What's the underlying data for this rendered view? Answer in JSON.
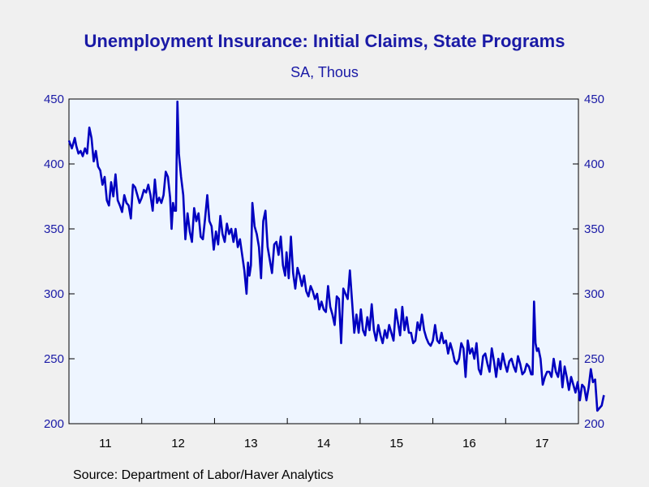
{
  "chart_data": {
    "type": "line",
    "title": "Unemployment Insurance: Initial Claims, State Programs",
    "subtitle": "SA, Thous",
    "source": "Source:  Department of Labor/Haver Analytics",
    "x_tick_labels": [
      "11",
      "12",
      "13",
      "14",
      "15",
      "16",
      "17"
    ],
    "x_range": [
      2011.0,
      2018.0
    ],
    "ylim": [
      200,
      450
    ],
    "y_ticks": [
      200,
      250,
      300,
      350,
      400,
      450
    ],
    "y_tick_labels": [
      "200",
      "250",
      "300",
      "350",
      "400",
      "450"
    ],
    "grid": false,
    "line_color": "#0000c0",
    "axis_label_color": "#1a1aa6",
    "plot_background": "#eef5ff",
    "series": [
      {
        "values": [
          [
            2011.0,
            418
          ],
          [
            2011.04,
            412
          ],
          [
            2011.08,
            420
          ],
          [
            2011.1,
            414
          ],
          [
            2011.13,
            408
          ],
          [
            2011.16,
            410
          ],
          [
            2011.19,
            406
          ],
          [
            2011.22,
            412
          ],
          [
            2011.25,
            408
          ],
          [
            2011.28,
            428
          ],
          [
            2011.31,
            420
          ],
          [
            2011.34,
            402
          ],
          [
            2011.37,
            410
          ],
          [
            2011.4,
            398
          ],
          [
            2011.43,
            395
          ],
          [
            2011.46,
            384
          ],
          [
            2011.49,
            390
          ],
          [
            2011.52,
            372
          ],
          [
            2011.55,
            368
          ],
          [
            2011.58,
            386
          ],
          [
            2011.61,
            375
          ],
          [
            2011.64,
            392
          ],
          [
            2011.67,
            372
          ],
          [
            2011.7,
            368
          ],
          [
            2011.73,
            363
          ],
          [
            2011.76,
            376
          ],
          [
            2011.79,
            370
          ],
          [
            2011.82,
            368
          ],
          [
            2011.85,
            358
          ],
          [
            2011.88,
            384
          ],
          [
            2011.91,
            382
          ],
          [
            2011.94,
            376
          ],
          [
            2011.97,
            370
          ],
          [
            2012.0,
            374
          ],
          [
            2012.03,
            380
          ],
          [
            2012.06,
            378
          ],
          [
            2012.09,
            384
          ],
          [
            2012.12,
            376
          ],
          [
            2012.15,
            364
          ],
          [
            2012.18,
            388
          ],
          [
            2012.21,
            370
          ],
          [
            2012.24,
            374
          ],
          [
            2012.27,
            370
          ],
          [
            2012.3,
            376
          ],
          [
            2012.33,
            394
          ],
          [
            2012.36,
            390
          ],
          [
            2012.39,
            374
          ],
          [
            2012.41,
            350
          ],
          [
            2012.43,
            370
          ],
          [
            2012.45,
            364
          ],
          [
            2012.47,
            364
          ],
          [
            2012.49,
            448
          ],
          [
            2012.51,
            408
          ],
          [
            2012.54,
            390
          ],
          [
            2012.57,
            376
          ],
          [
            2012.6,
            342
          ],
          [
            2012.63,
            362
          ],
          [
            2012.66,
            348
          ],
          [
            2012.69,
            340
          ],
          [
            2012.72,
            366
          ],
          [
            2012.75,
            356
          ],
          [
            2012.78,
            362
          ],
          [
            2012.81,
            344
          ],
          [
            2012.84,
            342
          ],
          [
            2012.87,
            358
          ],
          [
            2012.9,
            376
          ],
          [
            2012.93,
            356
          ],
          [
            2012.96,
            352
          ],
          [
            2012.99,
            334
          ],
          [
            2013.02,
            348
          ],
          [
            2013.05,
            338
          ],
          [
            2013.08,
            360
          ],
          [
            2013.11,
            346
          ],
          [
            2013.14,
            340
          ],
          [
            2013.17,
            354
          ],
          [
            2013.2,
            346
          ],
          [
            2013.23,
            350
          ],
          [
            2013.26,
            340
          ],
          [
            2013.29,
            350
          ],
          [
            2013.32,
            336
          ],
          [
            2013.35,
            342
          ],
          [
            2013.38,
            330
          ],
          [
            2013.41,
            318
          ],
          [
            2013.44,
            300
          ],
          [
            2013.46,
            324
          ],
          [
            2013.48,
            314
          ],
          [
            2013.5,
            322
          ],
          [
            2013.52,
            370
          ],
          [
            2013.55,
            352
          ],
          [
            2013.58,
            346
          ],
          [
            2013.61,
            336
          ],
          [
            2013.64,
            312
          ],
          [
            2013.67,
            356
          ],
          [
            2013.7,
            364
          ],
          [
            2013.73,
            336
          ],
          [
            2013.76,
            326
          ],
          [
            2013.79,
            316
          ],
          [
            2013.82,
            338
          ],
          [
            2013.85,
            340
          ],
          [
            2013.88,
            330
          ],
          [
            2013.91,
            344
          ],
          [
            2013.94,
            322
          ],
          [
            2013.97,
            314
          ],
          [
            2013.99,
            332
          ],
          [
            2014.02,
            312
          ],
          [
            2014.05,
            344
          ],
          [
            2014.08,
            316
          ],
          [
            2014.11,
            304
          ],
          [
            2014.14,
            320
          ],
          [
            2014.17,
            314
          ],
          [
            2014.2,
            306
          ],
          [
            2014.23,
            314
          ],
          [
            2014.26,
            302
          ],
          [
            2014.29,
            298
          ],
          [
            2014.32,
            306
          ],
          [
            2014.35,
            302
          ],
          [
            2014.38,
            296
          ],
          [
            2014.41,
            300
          ],
          [
            2014.44,
            288
          ],
          [
            2014.47,
            294
          ],
          [
            2014.5,
            288
          ],
          [
            2014.53,
            286
          ],
          [
            2014.56,
            306
          ],
          [
            2014.59,
            290
          ],
          [
            2014.62,
            284
          ],
          [
            2014.65,
            276
          ],
          [
            2014.68,
            298
          ],
          [
            2014.71,
            296
          ],
          [
            2014.74,
            262
          ],
          [
            2014.77,
            304
          ],
          [
            2014.8,
            300
          ],
          [
            2014.83,
            296
          ],
          [
            2014.86,
            318
          ],
          [
            2014.89,
            294
          ],
          [
            2014.92,
            270
          ],
          [
            2014.95,
            284
          ],
          [
            2014.98,
            270
          ],
          [
            2015.01,
            288
          ],
          [
            2015.04,
            272
          ],
          [
            2015.07,
            268
          ],
          [
            2015.1,
            282
          ],
          [
            2015.13,
            272
          ],
          [
            2015.16,
            292
          ],
          [
            2015.19,
            272
          ],
          [
            2015.22,
            264
          ],
          [
            2015.25,
            276
          ],
          [
            2015.28,
            268
          ],
          [
            2015.31,
            262
          ],
          [
            2015.34,
            272
          ],
          [
            2015.37,
            266
          ],
          [
            2015.4,
            276
          ],
          [
            2015.43,
            270
          ],
          [
            2015.46,
            264
          ],
          [
            2015.49,
            288
          ],
          [
            2015.52,
            278
          ],
          [
            2015.55,
            268
          ],
          [
            2015.58,
            290
          ],
          [
            2015.61,
            272
          ],
          [
            2015.64,
            282
          ],
          [
            2015.67,
            270
          ],
          [
            2015.7,
            270
          ],
          [
            2015.73,
            262
          ],
          [
            2015.76,
            264
          ],
          [
            2015.79,
            278
          ],
          [
            2015.82,
            272
          ],
          [
            2015.85,
            284
          ],
          [
            2015.88,
            272
          ],
          [
            2015.91,
            266
          ],
          [
            2015.94,
            262
          ],
          [
            2015.97,
            260
          ],
          [
            2016.0,
            264
          ],
          [
            2016.03,
            276
          ],
          [
            2016.06,
            264
          ],
          [
            2016.09,
            262
          ],
          [
            2016.12,
            270
          ],
          [
            2016.15,
            262
          ],
          [
            2016.18,
            264
          ],
          [
            2016.21,
            254
          ],
          [
            2016.24,
            262
          ],
          [
            2016.27,
            256
          ],
          [
            2016.3,
            248
          ],
          [
            2016.33,
            246
          ],
          [
            2016.36,
            250
          ],
          [
            2016.39,
            262
          ],
          [
            2016.42,
            258
          ],
          [
            2016.45,
            236
          ],
          [
            2016.48,
            264
          ],
          [
            2016.51,
            254
          ],
          [
            2016.54,
            258
          ],
          [
            2016.57,
            250
          ],
          [
            2016.6,
            262
          ],
          [
            2016.63,
            242
          ],
          [
            2016.66,
            238
          ],
          [
            2016.69,
            252
          ],
          [
            2016.72,
            254
          ],
          [
            2016.75,
            246
          ],
          [
            2016.78,
            240
          ],
          [
            2016.81,
            258
          ],
          [
            2016.84,
            248
          ],
          [
            2016.87,
            236
          ],
          [
            2016.9,
            250
          ],
          [
            2016.93,
            242
          ],
          [
            2016.96,
            254
          ],
          [
            2016.99,
            246
          ],
          [
            2017.02,
            240
          ],
          [
            2017.05,
            248
          ],
          [
            2017.08,
            250
          ],
          [
            2017.11,
            244
          ],
          [
            2017.14,
            240
          ],
          [
            2017.17,
            252
          ],
          [
            2017.2,
            246
          ],
          [
            2017.23,
            238
          ],
          [
            2017.26,
            240
          ],
          [
            2017.29,
            246
          ],
          [
            2017.32,
            244
          ],
          [
            2017.35,
            238
          ],
          [
            2017.37,
            238
          ],
          [
            2017.39,
            294
          ],
          [
            2017.41,
            262
          ],
          [
            2017.43,
            256
          ],
          [
            2017.45,
            258
          ],
          [
            2017.48,
            250
          ],
          [
            2017.51,
            230
          ],
          [
            2017.54,
            236
          ],
          [
            2017.57,
            240
          ],
          [
            2017.6,
            240
          ],
          [
            2017.63,
            236
          ],
          [
            2017.66,
            250
          ],
          [
            2017.69,
            240
          ],
          [
            2017.72,
            236
          ],
          [
            2017.75,
            248
          ],
          [
            2017.78,
            228
          ],
          [
            2017.81,
            244
          ],
          [
            2017.84,
            236
          ],
          [
            2017.87,
            226
          ],
          [
            2017.9,
            236
          ],
          [
            2017.93,
            230
          ],
          [
            2017.96,
            224
          ],
          [
            2017.99,
            232
          ],
          [
            2018.02,
            218
          ],
          [
            2018.05,
            230
          ],
          [
            2018.08,
            228
          ],
          [
            2018.11,
            218
          ],
          [
            2018.14,
            228
          ],
          [
            2018.17,
            242
          ],
          [
            2018.2,
            232
          ],
          [
            2018.23,
            234
          ],
          [
            2018.26,
            210
          ],
          [
            2018.29,
            212
          ],
          [
            2018.32,
            214
          ],
          [
            2018.35,
            222
          ]
        ]
      }
    ]
  }
}
